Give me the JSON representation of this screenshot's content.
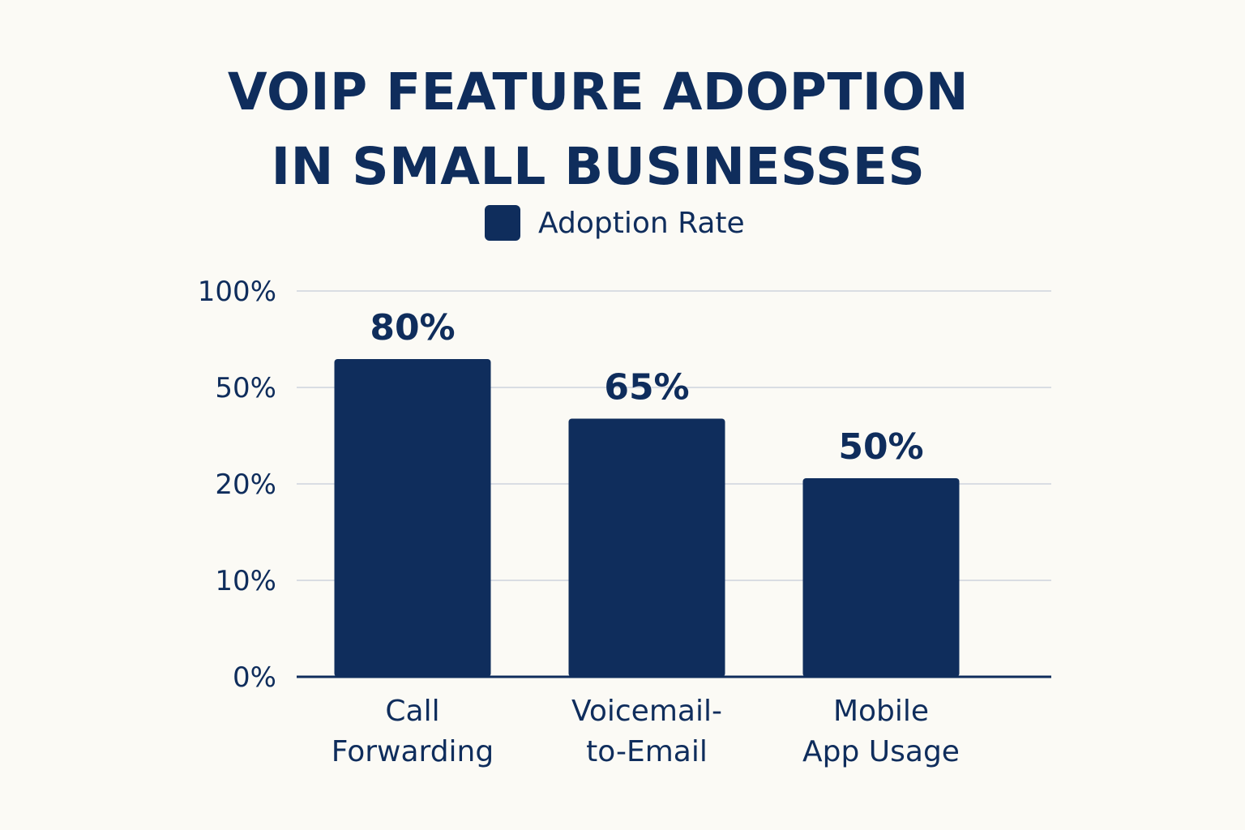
{
  "chart_data": {
    "type": "bar",
    "title": [
      "VOIP FEATURE ADOPTION",
      "IN SMALL BUSINESSES"
    ],
    "categories": [
      [
        "Call",
        "Forwarding"
      ],
      [
        "Voicemail-",
        "to-Email"
      ],
      [
        "Mobile",
        "App Usage"
      ]
    ],
    "series": [
      {
        "name": "Adoption Rate",
        "values": [
          80,
          65,
          50
        ],
        "value_labels": [
          "80%",
          "65%",
          "50%"
        ]
      }
    ],
    "y_ticks": [
      "0%",
      "10%",
      "20%",
      "50%",
      "100%"
    ],
    "legend_position": "top",
    "grid": true,
    "colors": {
      "bar": "#0f2d5c",
      "text": "#0f2d5c",
      "grid": "#d9dde3",
      "background": "#fbfaf5"
    }
  }
}
